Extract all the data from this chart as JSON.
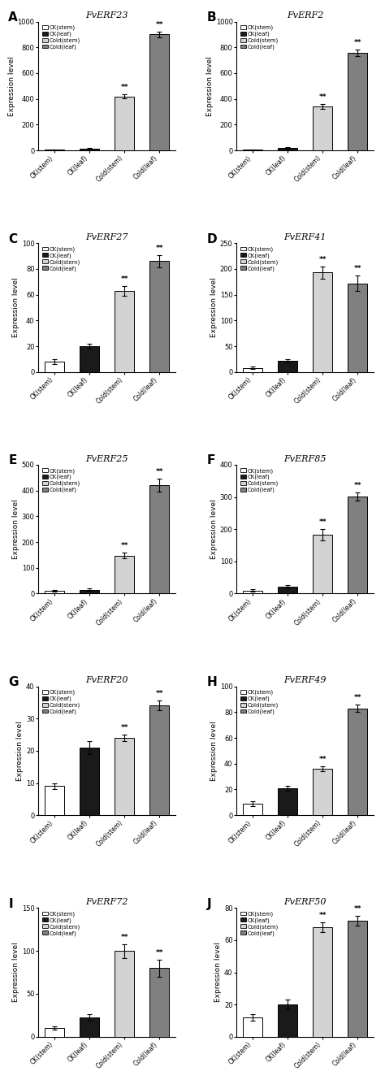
{
  "panels": [
    {
      "label": "A",
      "title": "FvERF23",
      "values": [
        5,
        15,
        420,
        900
      ],
      "errors": [
        2,
        5,
        15,
        20
      ],
      "ylim": [
        0,
        1000
      ],
      "yticks": [
        0,
        200,
        400,
        600,
        800,
        1000
      ],
      "sig": [
        false,
        false,
        true,
        true
      ]
    },
    {
      "label": "B",
      "title": "FvERF2",
      "values": [
        5,
        20,
        340,
        760
      ],
      "errors": [
        2,
        5,
        20,
        25
      ],
      "ylim": [
        0,
        1000
      ],
      "yticks": [
        0,
        200,
        400,
        600,
        800,
        1000
      ],
      "sig": [
        false,
        false,
        true,
        true
      ]
    },
    {
      "label": "C",
      "title": "FvERF27",
      "values": [
        8,
        20,
        63,
        86
      ],
      "errors": [
        2,
        2,
        4,
        5
      ],
      "ylim": [
        0,
        100
      ],
      "yticks": [
        0,
        20,
        40,
        60,
        80,
        100
      ],
      "sig": [
        false,
        false,
        true,
        true
      ]
    },
    {
      "label": "D",
      "title": "FvERF41",
      "values": [
        8,
        22,
        193,
        172
      ],
      "errors": [
        2,
        3,
        12,
        15
      ],
      "ylim": [
        0,
        250
      ],
      "yticks": [
        0,
        50,
        100,
        150,
        200,
        250
      ],
      "sig": [
        false,
        false,
        true,
        true
      ]
    },
    {
      "label": "E",
      "title": "FvERF25",
      "values": [
        10,
        15,
        148,
        420
      ],
      "errors": [
        3,
        4,
        12,
        25
      ],
      "ylim": [
        0,
        500
      ],
      "yticks": [
        0,
        100,
        200,
        300,
        400,
        500
      ],
      "sig": [
        false,
        false,
        true,
        true
      ]
    },
    {
      "label": "F",
      "title": "FvERF85",
      "values": [
        10,
        22,
        183,
        302
      ],
      "errors": [
        3,
        5,
        18,
        12
      ],
      "ylim": [
        0,
        400
      ],
      "yticks": [
        0,
        100,
        200,
        300,
        400
      ],
      "sig": [
        false,
        false,
        true,
        true
      ]
    },
    {
      "label": "G",
      "title": "FvERF20",
      "values": [
        9,
        21,
        24,
        34
      ],
      "errors": [
        1,
        2,
        1,
        1.5
      ],
      "ylim": [
        0,
        40
      ],
      "yticks": [
        0,
        10,
        20,
        30,
        40
      ],
      "sig": [
        false,
        false,
        true,
        true
      ]
    },
    {
      "label": "H",
      "title": "FvERF49",
      "values": [
        9,
        21,
        36,
        83
      ],
      "errors": [
        2,
        2,
        2,
        3
      ],
      "ylim": [
        0,
        100
      ],
      "yticks": [
        0,
        20,
        40,
        60,
        80,
        100
      ],
      "sig": [
        false,
        false,
        true,
        true
      ]
    },
    {
      "label": "I",
      "title": "FvERF72",
      "values": [
        10,
        23,
        100,
        80
      ],
      "errors": [
        2,
        3,
        8,
        10
      ],
      "ylim": [
        0,
        150
      ],
      "yticks": [
        0,
        50,
        100,
        150
      ],
      "sig": [
        false,
        false,
        true,
        true
      ]
    },
    {
      "label": "J",
      "title": "FvERF50",
      "values": [
        12,
        20,
        68,
        72
      ],
      "errors": [
        2,
        3,
        3,
        3
      ],
      "ylim": [
        0,
        80
      ],
      "yticks": [
        0,
        20,
        40,
        60,
        80
      ],
      "sig": [
        false,
        false,
        true,
        true
      ]
    }
  ],
  "categories": [
    "CK(stem)",
    "CK(leaf)",
    "Cold(stem)",
    "Cold(leaf)"
  ],
  "bar_colors": [
    "#ffffff",
    "#1a1a1a",
    "#d3d3d3",
    "#808080"
  ],
  "bar_edgecolor": "#000000",
  "ylabel": "Expression level",
  "figure_width": 4.74,
  "figure_height": 13.29
}
